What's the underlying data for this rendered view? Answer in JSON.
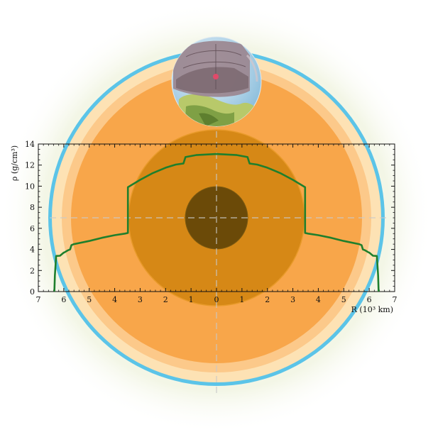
{
  "chart_data": {
    "type": "line",
    "title": "",
    "xlabel": "R (10³ km)",
    "ylabel": "ρ (g/cm³)",
    "xlim": [
      -7,
      7
    ],
    "ylim": [
      0,
      14
    ],
    "x_tick_values": [
      -7,
      -6,
      -5,
      -4,
      -3,
      -2,
      -1,
      0,
      1,
      2,
      3,
      4,
      5,
      6,
      7
    ],
    "x_tick_labels": [
      "7",
      "6",
      "5",
      "4",
      "3",
      "2",
      "1",
      "0",
      "1",
      "2",
      "3",
      "4",
      "5",
      "6",
      "7"
    ],
    "y_tick_values": [
      0,
      2,
      4,
      6,
      8,
      10,
      12,
      14
    ],
    "y_tick_labels": [
      "0",
      "2",
      "4",
      "6",
      "8",
      "10",
      "12",
      "14"
    ],
    "grid": false,
    "series": [
      {
        "color": "#1f7f2c",
        "x": [
          -6.37,
          -6.35,
          -6.3,
          -6.15,
          -6.0,
          -5.97,
          -5.85,
          -5.75,
          -5.7,
          -5.6,
          -5.0,
          -4.5,
          -4.0,
          -3.6,
          -3.48,
          -3.48,
          -3.0,
          -2.5,
          -2.0,
          -1.6,
          -1.3,
          -1.22,
          -1.22,
          -0.8,
          0.0,
          0.8,
          1.22,
          1.22,
          1.3,
          1.6,
          2.0,
          2.5,
          3.0,
          3.48,
          3.48,
          3.6,
          4.0,
          4.5,
          5.0,
          5.6,
          5.7,
          5.75,
          5.85,
          5.97,
          6.0,
          6.15,
          6.3,
          6.35,
          6.37
        ],
        "y": [
          0.0,
          1.5,
          3.38,
          3.4,
          3.7,
          3.72,
          3.9,
          4.0,
          4.4,
          4.5,
          4.8,
          5.1,
          5.35,
          5.5,
          5.56,
          9.9,
          10.6,
          11.25,
          11.75,
          12.05,
          12.15,
          12.76,
          12.76,
          12.95,
          13.05,
          12.95,
          12.76,
          12.76,
          12.15,
          12.05,
          11.75,
          11.25,
          10.6,
          9.9,
          5.56,
          5.5,
          5.35,
          5.1,
          4.8,
          4.5,
          4.4,
          4.0,
          3.9,
          3.72,
          3.7,
          3.4,
          3.38,
          1.5,
          0.0
        ]
      }
    ]
  },
  "layers": {
    "atmosphere_color": "#f1f2dc",
    "ocean_ring_color": "#5bc4e8",
    "crust_color": "#fde2b4",
    "upper_mantle_color": "#fcc98a",
    "lower_mantle_color": "#f8a64a",
    "outer_core_color": "#d68816",
    "inner_core_color": "#6b4a08",
    "globe_icon": "earth-cutaway-globe-icon"
  }
}
